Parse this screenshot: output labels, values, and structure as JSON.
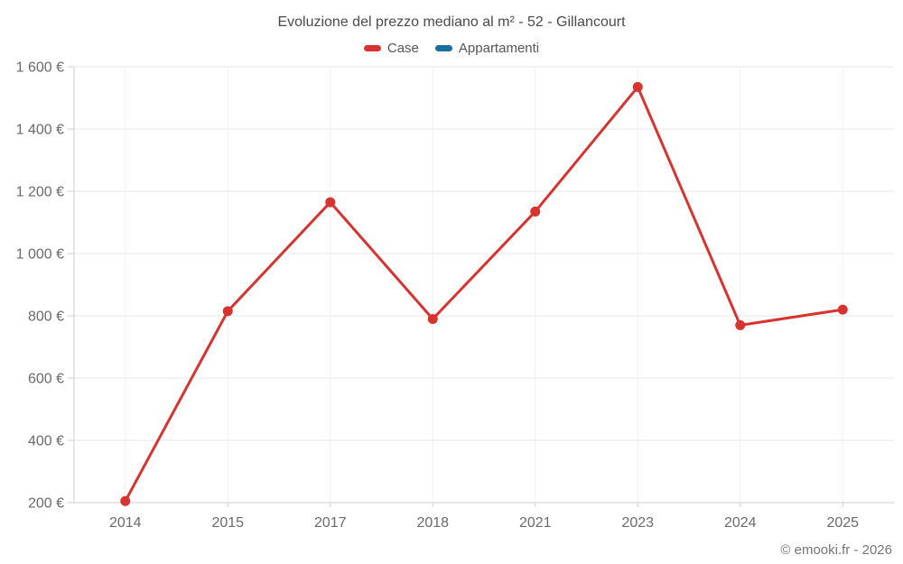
{
  "title": "Evoluzione del prezzo mediano al m² - 52 - Gillancourt",
  "legend": [
    {
      "label": "Case",
      "color": "#d8332f"
    },
    {
      "label": "Appartamenti",
      "color": "#1c6e9c"
    }
  ],
  "footer": "© emooki.fr - 2026",
  "colors": {
    "grid_h": "#e7e7e7",
    "grid_v": "#f1f1f1",
    "axis": "#cfcfcf",
    "text": "#6b6b6b"
  },
  "chart_data": {
    "type": "line",
    "categories": [
      "2014",
      "2015",
      "2017",
      "2018",
      "2021",
      "2023",
      "2024",
      "2025"
    ],
    "series": [
      {
        "name": "Case",
        "color": "#d8332f",
        "values": [
          205,
          815,
          1165,
          790,
          1135,
          1535,
          770,
          820
        ]
      },
      {
        "name": "Appartamenti",
        "color": "#1c6e9c",
        "values": []
      }
    ],
    "ylim": [
      200,
      1600
    ],
    "ytick_step": 200,
    "ytick_suffix": " €",
    "grid": true,
    "legend_position": "top",
    "xlabel": "",
    "ylabel": ""
  }
}
